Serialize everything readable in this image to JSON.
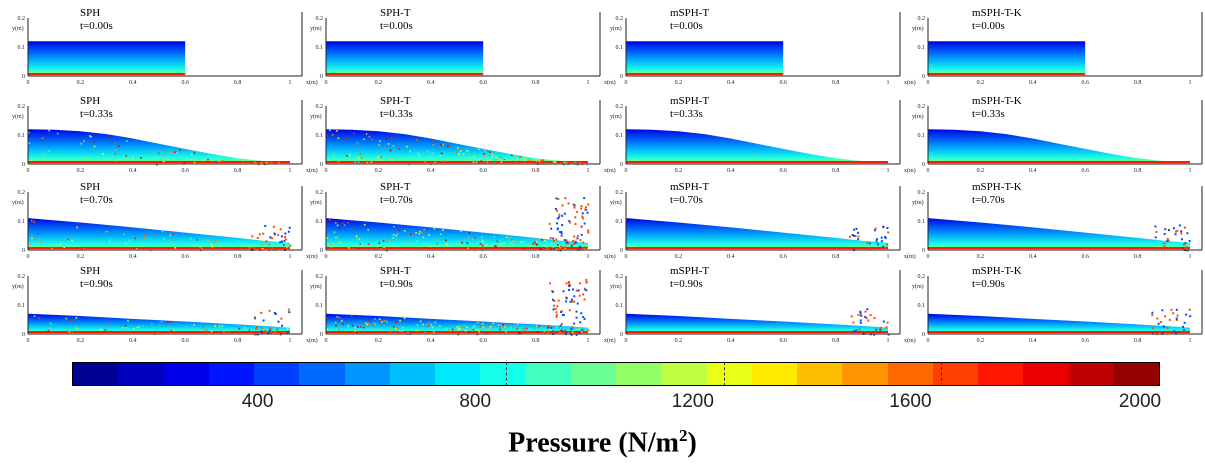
{
  "chart_data": {
    "type": "heatmap",
    "title": "",
    "xlabel": "x(m)",
    "ylabel": "y(m)",
    "xlim": [
      0,
      1
    ],
    "ylim": [
      0,
      0.2
    ],
    "x_ticks": [
      "0",
      "0.2",
      "0.4",
      "0.6",
      "0.8",
      "1"
    ],
    "y_ticks": [
      "0",
      "0.1",
      "0.2"
    ],
    "methods": [
      "SPH",
      "SPH-T",
      "mSPH-T",
      "mSPH-T-K"
    ],
    "times": [
      "t=0.00s",
      "t=0.33s",
      "t=0.70s",
      "t=0.90s"
    ],
    "colorbar": {
      "label": "Pressure (N/m",
      "label_sup": "2",
      "label_end": ")",
      "min": 0,
      "max": 2000,
      "ticks": [
        "400",
        "800",
        "1200",
        "1600",
        "2000"
      ],
      "tick_values": [
        400,
        800,
        1200,
        1600,
        2000
      ],
      "colormap": "jet",
      "segments": 24
    },
    "water_surface_height_m": {
      "t=0.00s": {
        "x": [
          0,
          0.6
        ],
        "y": [
          0.12,
          0.12
        ]
      },
      "t=0.33s": {
        "x": [
          0,
          0.1,
          0.2,
          0.3,
          0.4,
          0.5,
          0.6,
          0.7,
          0.8,
          0.9,
          1.0
        ],
        "y": [
          0.12,
          0.118,
          0.113,
          0.103,
          0.088,
          0.07,
          0.052,
          0.035,
          0.02,
          0.01,
          0.004
        ]
      },
      "t=0.70s": {
        "x": [
          0,
          0.2,
          0.4,
          0.6,
          0.8,
          0.9,
          1.0
        ],
        "y": [
          0.11,
          0.095,
          0.078,
          0.06,
          0.042,
          0.032,
          0.025
        ]
      },
      "t=0.90s": {
        "x": [
          0,
          0.2,
          0.4,
          0.6,
          0.8,
          0.9,
          1.0
        ],
        "y": [
          0.07,
          0.062,
          0.052,
          0.043,
          0.033,
          0.028,
          0.022
        ]
      }
    }
  }
}
